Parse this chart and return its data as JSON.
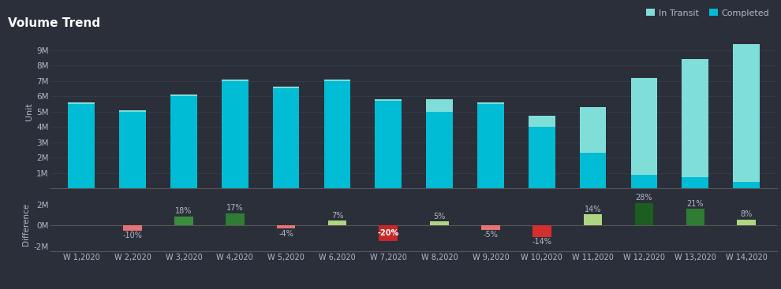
{
  "weeks": [
    "W 1,2020",
    "W 2,2020",
    "W 3,2020",
    "W 4,2020",
    "W 5,2020",
    "W 6,2020",
    "W 7,2020",
    "W 8,2020",
    "W 9,2020",
    "W 10,2020",
    "W 11,2020",
    "W 12,2020",
    "W 13,2020",
    "W 14,2020"
  ],
  "completed": [
    5500000,
    5000000,
    6000000,
    7000000,
    6500000,
    7000000,
    5700000,
    5000000,
    5500000,
    4000000,
    2300000,
    900000,
    700000,
    400000
  ],
  "in_transit": [
    100000,
    100000,
    100000,
    100000,
    100000,
    100000,
    100000,
    800000,
    100000,
    700000,
    3000000,
    6300000,
    7700000,
    9000000
  ],
  "diff_values": [
    0,
    -500000,
    900000,
    1200000,
    -300000,
    500000,
    -1500000,
    400000,
    -400000,
    -1100000,
    1100000,
    2200000,
    1600000,
    600000
  ],
  "diff_pct": [
    "",
    "-10%",
    "18%",
    "17%",
    "-4%",
    "7%",
    "-20%",
    "5%",
    "-5%",
    "-14%",
    "14%",
    "28%",
    "21%",
    "8%"
  ],
  "diff_colors": [
    "",
    "#e57373",
    "#388e3c",
    "#2e7d32",
    "#e57373",
    "#aed581",
    "#c62828",
    "#aed581",
    "#e57373",
    "#d32f2f",
    "#aed581",
    "#1b5e20",
    "#2e7d32",
    "#aed581"
  ],
  "completed_color": "#00bcd4",
  "in_transit_color": "#80ded9",
  "bg_color": "#2b2f3a",
  "title": "Volume Trend",
  "ylabel_top": "Unit",
  "ylabel_bottom": "Difference",
  "yticks_top": [
    1000000,
    2000000,
    3000000,
    4000000,
    5000000,
    6000000,
    7000000,
    8000000,
    9000000
  ],
  "ytick_labels_top": [
    "1M",
    "2M",
    "3M",
    "4M",
    "5M",
    "6M",
    "7M",
    "8M",
    "9M"
  ],
  "yticks_bottom": [
    -2000000,
    0,
    2000000
  ],
  "ytick_labels_bottom": [
    "-2M",
    "0M",
    "2M"
  ],
  "text_color": "#b0b8c8",
  "title_color": "#ffffff",
  "spine_color": "#555555"
}
